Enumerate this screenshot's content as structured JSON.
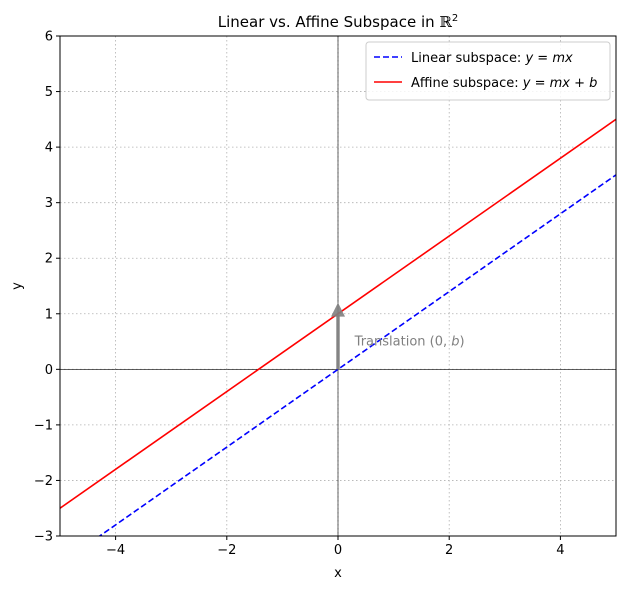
{
  "chart_data": {
    "type": "line",
    "title": "Linear vs. Affine Subspace in ℝ²",
    "xlabel": "x",
    "ylabel": "y",
    "xlim": [
      -5,
      5
    ],
    "ylim": [
      -3,
      6
    ],
    "xticks": [
      -4,
      -2,
      0,
      2,
      4
    ],
    "xtick_labels": [
      "−4",
      "−2",
      "0",
      "2",
      "4"
    ],
    "yticks": [
      -3,
      -2,
      -1,
      0,
      1,
      2,
      3,
      4,
      5,
      6
    ],
    "ytick_labels": [
      "−3",
      "−2",
      "−1",
      "0",
      "1",
      "2",
      "3",
      "4",
      "5",
      "6"
    ],
    "grid": true,
    "legend_position": "top-right",
    "series": [
      {
        "name": "Linear subspace: y = mx",
        "name_parts": [
          "Linear subspace: ",
          "y",
          " = ",
          "mx"
        ],
        "x": [
          -5,
          5
        ],
        "y": [
          -3.5,
          3.5
        ],
        "color": "#0000ff",
        "style": "dashed"
      },
      {
        "name": "Affine subspace: y = mx + b",
        "name_parts": [
          "Affine subspace: ",
          "y",
          " = ",
          "mx",
          " + ",
          "b"
        ],
        "x": [
          -5,
          5
        ],
        "y": [
          -2.5,
          4.5
        ],
        "color": "#ff0000",
        "style": "solid"
      }
    ],
    "arrow": {
      "from": [
        0,
        0
      ],
      "to": [
        0,
        1.2
      ],
      "color": "#808080"
    },
    "annotation": {
      "text": "Translation (0, b)",
      "text_parts": [
        "Translation ",
        "(0, ",
        "b",
        ")"
      ],
      "x": 0.3,
      "y": 0.5
    }
  }
}
